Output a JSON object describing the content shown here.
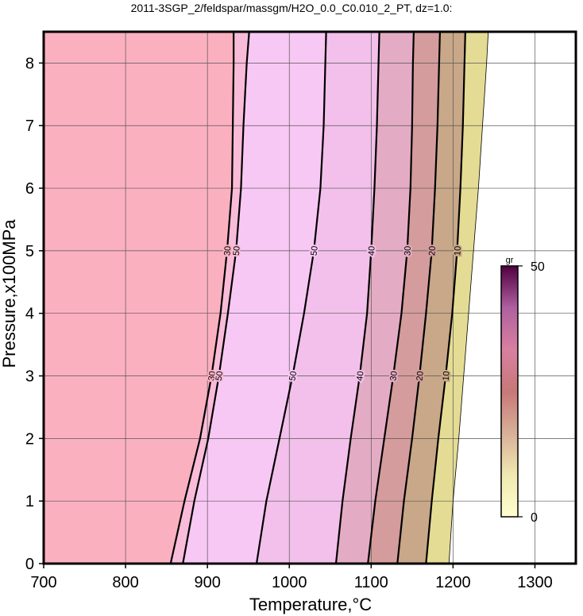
{
  "chart_data": {
    "type": "contour",
    "title": "2011-3SGP_2/feldspar/massgm/H2O_0.0_C0.010_2_PT, dz=1.0:",
    "x_label": "Temperature,°C",
    "y_label": "Pressure,x100MPa",
    "xlim": [
      700,
      1350
    ],
    "ylim": [
      0,
      8.5
    ],
    "xticks": [
      700,
      800,
      900,
      1000,
      1100,
      1200,
      1300
    ],
    "yticks": [
      0,
      1,
      2,
      3,
      4,
      5,
      6,
      7,
      8
    ],
    "grid": true,
    "contours": [
      {
        "level": 30,
        "color": "#fbb0c0",
        "x": [
          855,
          872,
          891,
          905,
          916,
          924,
          930,
          931,
          932,
          932
        ],
        "y": [
          0,
          1,
          2,
          3,
          4,
          5,
          6,
          7,
          8,
          8.5
        ]
      },
      {
        "level": 50,
        "color": "#f9bcd8",
        "x": [
          870,
          884,
          901,
          914,
          925,
          935,
          941,
          944,
          948,
          951
        ],
        "y": [
          0,
          1,
          2,
          3,
          4,
          5,
          6,
          7,
          8,
          8.5
        ]
      },
      {
        "level": 50,
        "color": "#f8c8f4",
        "x": [
          960,
          972,
          988,
          1004,
          1018,
          1030,
          1038,
          1042,
          1044,
          1045
        ],
        "y": [
          0,
          1,
          2,
          3,
          4,
          5,
          6,
          7,
          8,
          8.5
        ]
      },
      {
        "level": 40,
        "color": "#f2c0ea",
        "x": [
          1057,
          1065,
          1075,
          1086,
          1095,
          1100,
          1104,
          1107,
          1109,
          1110
        ],
        "y": [
          0,
          1,
          2,
          3,
          4,
          5,
          6,
          7,
          8,
          8.5
        ]
      },
      {
        "level": 30,
        "color": "#e4acc4",
        "x": [
          1096,
          1105,
          1116,
          1127,
          1137,
          1144,
          1148,
          1150,
          1151,
          1152
        ],
        "y": [
          0,
          1,
          2,
          3,
          4,
          5,
          6,
          7,
          8,
          8.5
        ]
      },
      {
        "level": 20,
        "color": "#d49c9c",
        "x": [
          1132,
          1140,
          1150,
          1159,
          1167,
          1174,
          1178,
          1181,
          1183,
          1184
        ],
        "y": [
          0,
          1,
          2,
          3,
          4,
          5,
          6,
          7,
          8,
          8.5
        ]
      },
      {
        "level": 10,
        "color": "#c8a888",
        "x": [
          1167,
          1174,
          1182,
          1191,
          1199,
          1205,
          1209,
          1212,
          1214,
          1215
        ],
        "y": [
          0,
          1,
          2,
          3,
          4,
          5,
          6,
          7,
          8,
          8.5
        ]
      },
      {
        "color": "#e4dc94",
        "x": [
          1195,
          1200,
          1207,
          1213,
          1219,
          1225,
          1231,
          1236,
          1241,
          1243
        ],
        "y": [
          0,
          1,
          2,
          3,
          4,
          5,
          6,
          7,
          8,
          8.5
        ]
      }
    ],
    "colorbar": {
      "label": "gr",
      "zlim": [
        0,
        50
      ],
      "ticks": [
        0,
        50
      ],
      "colormap": [
        "#ffffd0",
        "#f0e8b0",
        "#d8b098",
        "#c87878",
        "#d880a0",
        "#b060a0",
        "#500040"
      ]
    }
  }
}
